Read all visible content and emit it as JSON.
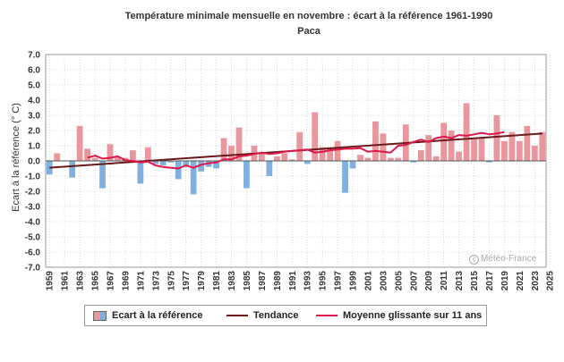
{
  "chart_data": {
    "type": "bar",
    "title": "Température minimale mensuelle en novembre : écart à la référence 1961-1990",
    "subtitle": "Paca",
    "ylabel": "Ecart à la référence (° C)",
    "xlabel": "",
    "ylim": [
      -7.0,
      7.0
    ],
    "xlim": [
      1959,
      2025
    ],
    "y_ticks": [
      "7.0",
      "6.0",
      "5.0",
      "4.0",
      "3.0",
      "2.0",
      "1.0",
      "0.0",
      "-1.0",
      "-2.0",
      "-3.0",
      "-4.0",
      "-5.0",
      "-6.0",
      "-7.0"
    ],
    "x_ticks": [
      "1959",
      "1961",
      "1963",
      "1965",
      "1967",
      "1969",
      "1971",
      "1973",
      "1975",
      "1977",
      "1979",
      "1981",
      "1983",
      "1985",
      "1987",
      "1989",
      "1991",
      "1993",
      "1995",
      "1997",
      "1999",
      "2001",
      "2003",
      "2005",
      "2007",
      "2009",
      "2011",
      "2013",
      "2015",
      "2017",
      "2019",
      "2021",
      "2023",
      "2025"
    ],
    "grid": true,
    "legend_position": "bottom",
    "bars": {
      "name": "Ecart à la référence",
      "positive_color": "#e9979c",
      "negative_color": "#7fb0e0",
      "years": [
        1959,
        1960,
        1961,
        1962,
        1963,
        1964,
        1965,
        1966,
        1967,
        1968,
        1969,
        1970,
        1971,
        1972,
        1973,
        1974,
        1975,
        1976,
        1977,
        1978,
        1979,
        1980,
        1981,
        1982,
        1983,
        1984,
        1985,
        1986,
        1987,
        1988,
        1989,
        1990,
        1991,
        1992,
        1993,
        1994,
        1995,
        1996,
        1997,
        1998,
        1999,
        2000,
        2001,
        2002,
        2003,
        2004,
        2005,
        2006,
        2007,
        2008,
        2009,
        2010,
        2011,
        2012,
        2013,
        2014,
        2015,
        2016,
        2017,
        2018,
        2019,
        2020,
        2021,
        2022,
        2023,
        2024
      ],
      "values": [
        -0.9,
        0.5,
        0.0,
        -1.1,
        2.3,
        0.8,
        0.2,
        -1.8,
        1.1,
        0.3,
        0.2,
        0.7,
        -1.5,
        0.9,
        -0.2,
        -0.3,
        -0.1,
        -1.2,
        -0.4,
        -2.2,
        -0.7,
        -0.4,
        -0.5,
        1.5,
        1.0,
        2.2,
        -1.8,
        1.0,
        0.5,
        -1.0,
        0.3,
        0.5,
        0.1,
        1.9,
        -0.2,
        3.2,
        0.9,
        0.9,
        1.3,
        -2.1,
        -0.5,
        0.4,
        0.2,
        2.6,
        1.8,
        0.2,
        0.2,
        2.4,
        -0.1,
        0.7,
        1.7,
        0.3,
        2.5,
        2.0,
        0.6,
        3.8,
        1.5,
        1.5,
        -0.1,
        3.0,
        1.3,
        1.9,
        1.3,
        2.3,
        1.0,
        1.9
      ]
    },
    "trend": {
      "name": "Tendance",
      "color": "#6b1a1a",
      "from": [
        1959,
        -0.45
      ],
      "to": [
        2024,
        1.8
      ]
    },
    "moving_average": {
      "name": "Moyenne glissante sur 11 ans",
      "color": "#e0174a",
      "years": [
        1964,
        1965,
        1966,
        1967,
        1968,
        1969,
        1970,
        1971,
        1972,
        1973,
        1974,
        1975,
        1976,
        1977,
        1978,
        1979,
        1980,
        1981,
        1982,
        1983,
        1984,
        1985,
        1986,
        1987,
        1988,
        1989,
        1990,
        1991,
        1992,
        1993,
        1994,
        1995,
        1996,
        1997,
        1998,
        1999,
        2000,
        2001,
        2002,
        2003,
        2004,
        2005,
        2006,
        2007,
        2008,
        2009,
        2010,
        2011,
        2012,
        2013,
        2014,
        2015,
        2016,
        2017,
        2018,
        2019
      ],
      "values": [
        0.2,
        0.35,
        0.15,
        0.2,
        0.3,
        0.05,
        0.0,
        -0.1,
        -0.05,
        -0.3,
        -0.4,
        -0.45,
        -0.5,
        -0.3,
        -0.45,
        -0.25,
        -0.15,
        -0.1,
        0.1,
        0.1,
        0.3,
        0.35,
        0.45,
        0.55,
        0.45,
        0.5,
        0.6,
        0.65,
        0.7,
        0.75,
        0.55,
        0.6,
        0.7,
        0.75,
        0.8,
        0.8,
        0.85,
        0.6,
        0.65,
        0.6,
        0.55,
        1.0,
        1.05,
        1.25,
        1.4,
        1.25,
        1.5,
        1.6,
        1.5,
        1.7,
        1.65,
        1.75,
        1.85,
        1.75,
        1.8,
        1.9
      ]
    },
    "legend": [
      "Ecart à la référence",
      "Tendance",
      "Moyenne glissante sur 11 ans"
    ],
    "credit": "Météo-France"
  }
}
